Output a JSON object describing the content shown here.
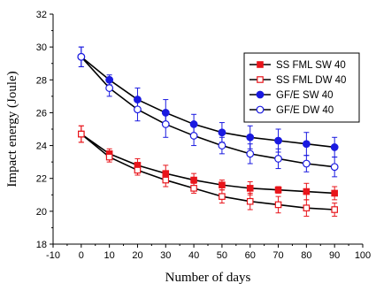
{
  "chart_data": {
    "type": "line",
    "xlabel": "Number of days",
    "ylabel": "Impact energy (Joule)",
    "xlim": [
      -10,
      100
    ],
    "ylim": [
      18,
      32
    ],
    "xticks": [
      -10,
      0,
      10,
      20,
      30,
      40,
      50,
      60,
      70,
      80,
      90,
      100
    ],
    "yticks": [
      18,
      20,
      22,
      24,
      26,
      28,
      30,
      32
    ],
    "x": [
      0,
      10,
      20,
      30,
      40,
      50,
      60,
      70,
      80,
      90
    ],
    "legend_position": "top-right",
    "grid": false,
    "series": [
      {
        "name": "SS FML SW 40",
        "color": "#e8151b",
        "marker": "square",
        "filled": true,
        "values": [
          24.7,
          23.5,
          22.8,
          22.3,
          21.9,
          21.6,
          21.4,
          21.3,
          21.2,
          21.1
        ],
        "errors": [
          0.5,
          0.3,
          0.4,
          0.5,
          0.4,
          0.3,
          0.4,
          0.2,
          0.5,
          0.4
        ]
      },
      {
        "name": "SS FML DW 40",
        "color": "#e8151b",
        "marker": "square",
        "filled": false,
        "values": [
          24.7,
          23.3,
          22.5,
          21.9,
          21.4,
          20.9,
          20.6,
          20.4,
          20.2,
          20.1
        ],
        "errors": [
          0.5,
          0.3,
          0.3,
          0.4,
          0.3,
          0.4,
          0.5,
          0.5,
          0.5,
          0.4
        ]
      },
      {
        "name": "GF/E SW 40",
        "color": "#1a1ae0",
        "marker": "circle",
        "filled": true,
        "values": [
          29.4,
          28.0,
          26.8,
          26.0,
          25.3,
          24.8,
          24.5,
          24.3,
          24.1,
          23.9
        ],
        "errors": [
          0.6,
          0.3,
          0.7,
          0.8,
          0.6,
          0.6,
          0.7,
          0.7,
          0.7,
          0.6
        ]
      },
      {
        "name": "GF/E DW 40",
        "color": "#1a1ae0",
        "marker": "circle",
        "filled": false,
        "values": [
          29.4,
          27.5,
          26.2,
          25.3,
          24.6,
          24.0,
          23.5,
          23.2,
          22.9,
          22.7
        ],
        "errors": [
          0.6,
          0.5,
          0.7,
          0.8,
          0.6,
          0.5,
          0.6,
          0.6,
          0.5,
          0.6
        ]
      }
    ]
  }
}
